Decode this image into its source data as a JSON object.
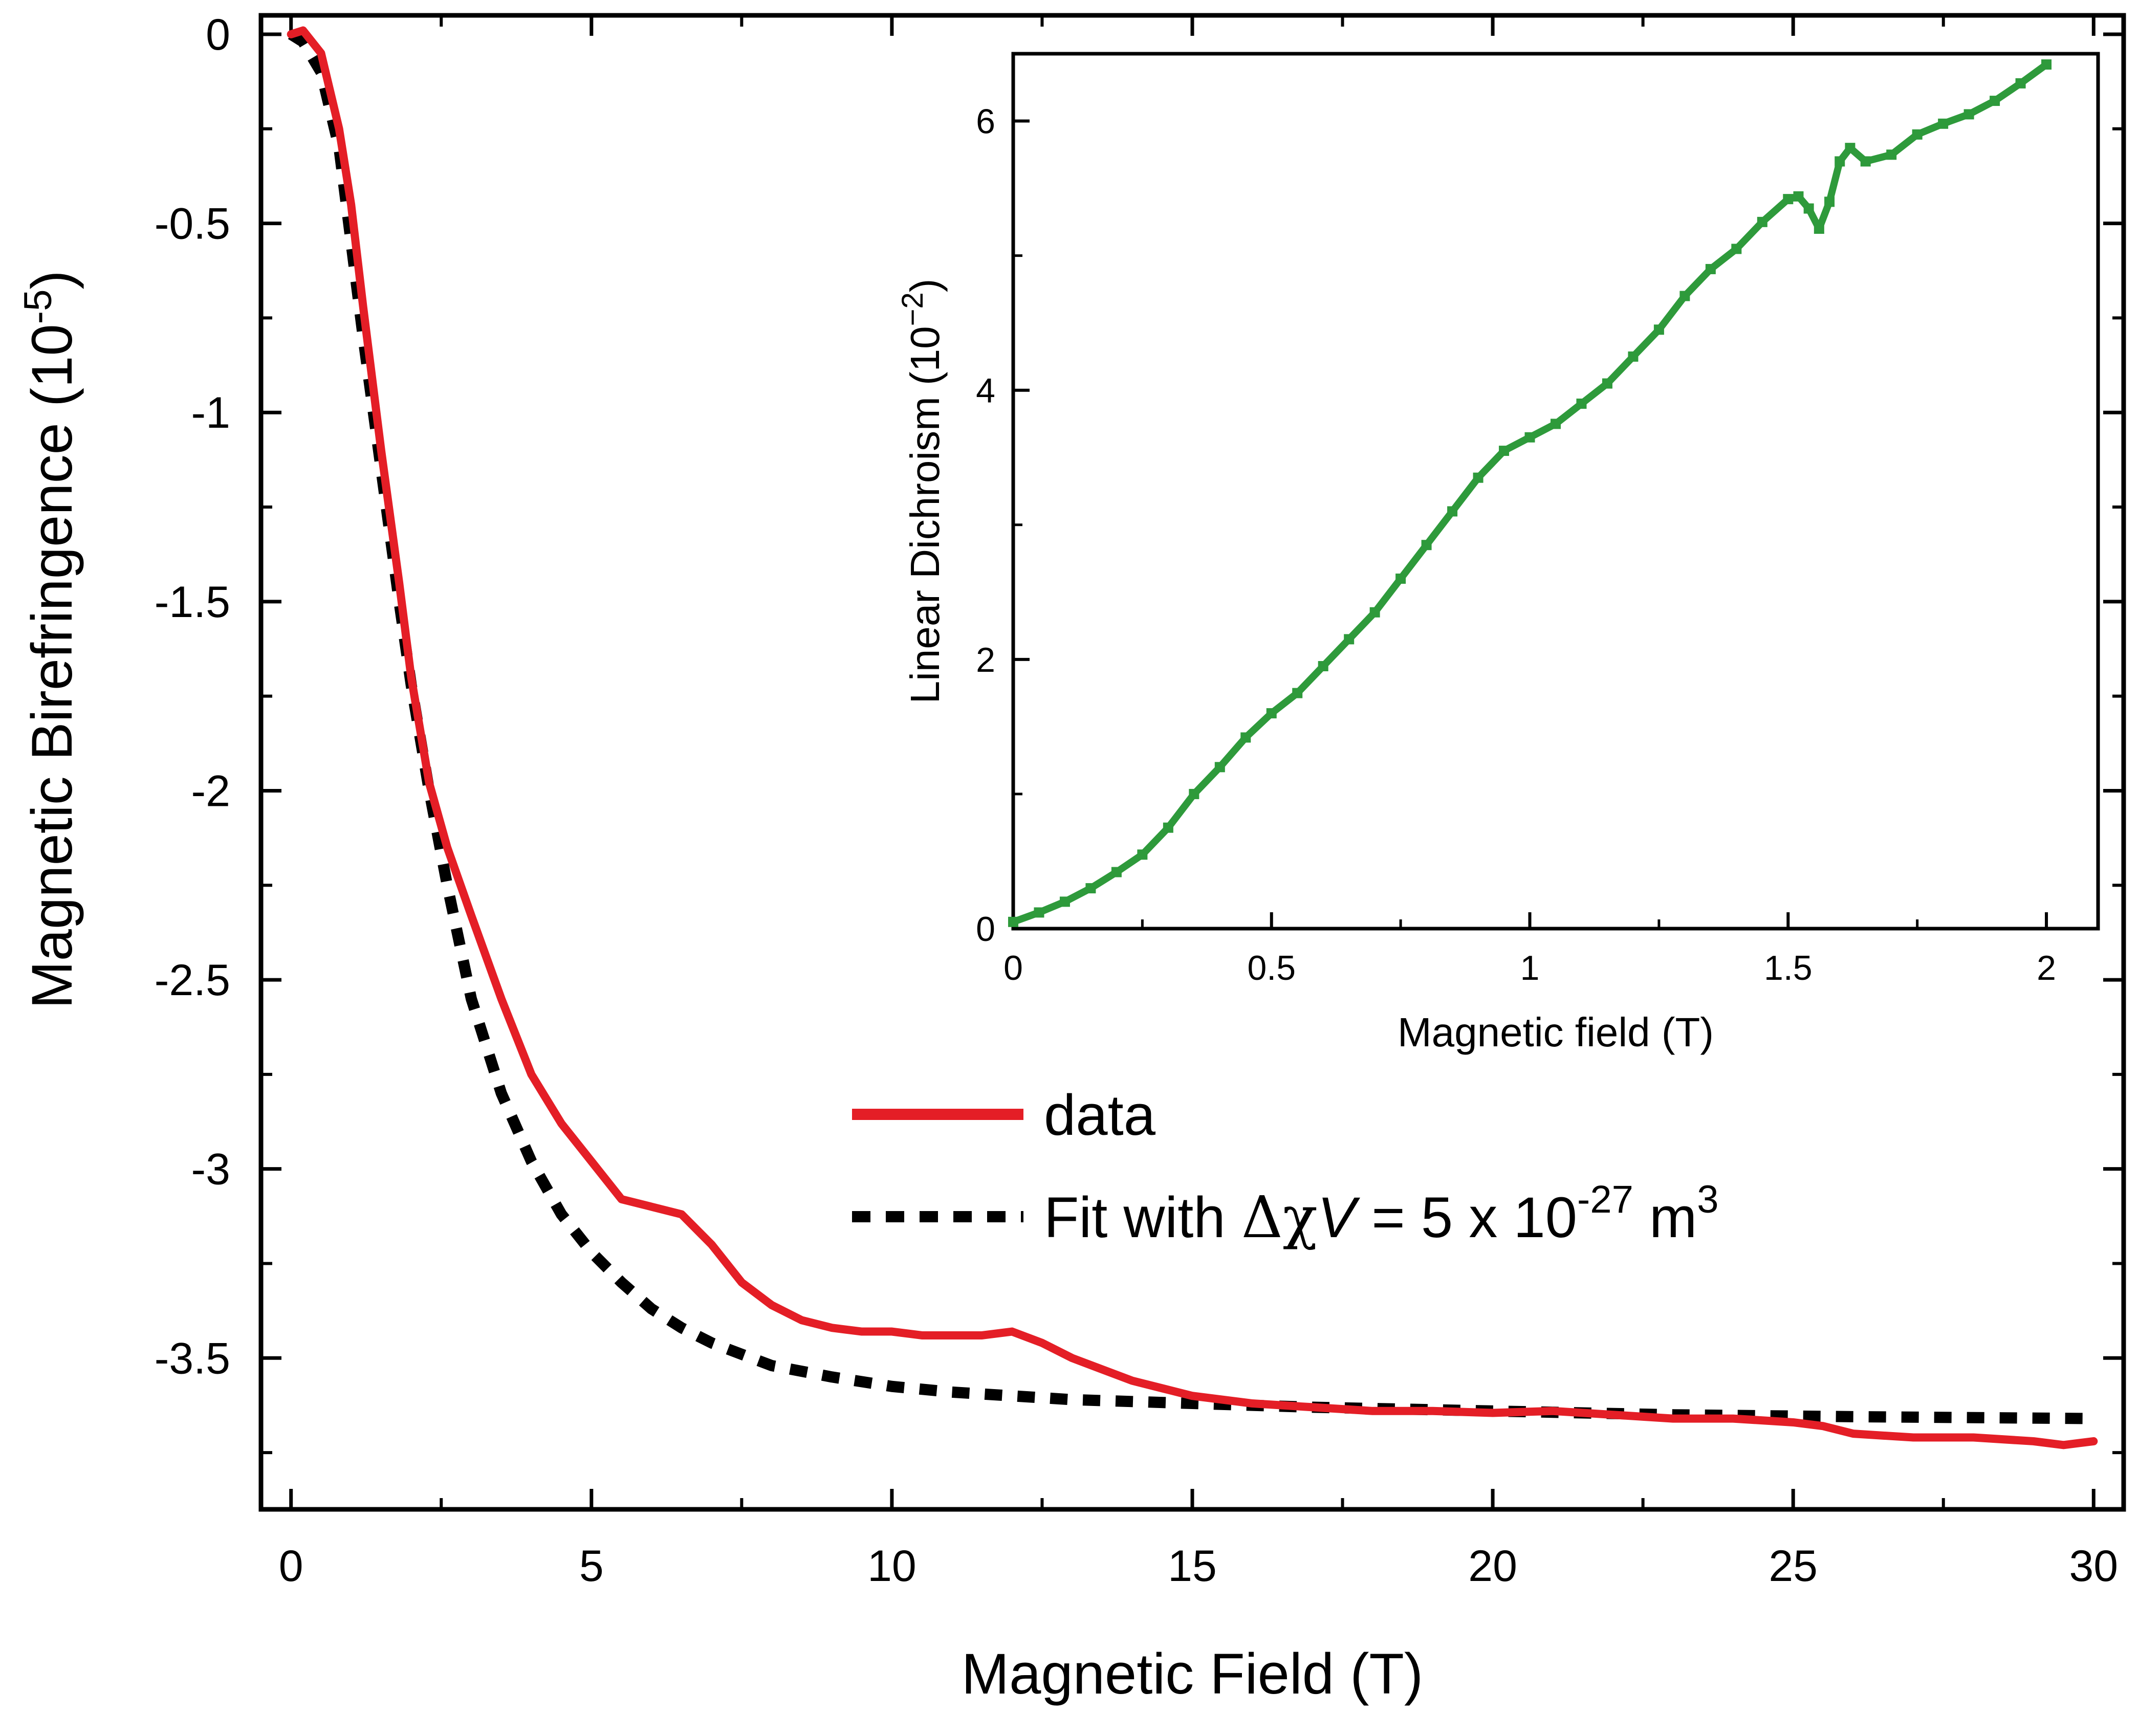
{
  "colors": {
    "data": "#e41e26",
    "fit": "#000000",
    "inset": "#2e9a3b",
    "axis": "#000000"
  },
  "main": {
    "xlabel": "Magnetic Field (T)",
    "ylabel": "Magnetic Birefringence (10",
    "ylabel_exp": "-5",
    "ylabel_close": ")",
    "xlim": [
      -0.5,
      30.5
    ],
    "ylim": [
      -3.9,
      0.05
    ],
    "xticks": [
      0,
      5,
      10,
      15,
      20,
      25,
      30
    ],
    "xtick_labels": [
      "0",
      "5",
      "10",
      "15",
      "20",
      "25",
      "30"
    ],
    "yticks": [
      0,
      -0.5,
      -1,
      -1.5,
      -2,
      -2.5,
      -3,
      -3.5
    ],
    "ytick_labels": [
      "0",
      "-0.5",
      "-1",
      "-1.5",
      "-2",
      "-2.5",
      "-3",
      "-3.5"
    ]
  },
  "legend": {
    "data_label": "data",
    "fit_prefix": "Fit with ",
    "fit_delta_chi": "Δχ",
    "fit_V": "V",
    "fit_middle": " = 5 x 10",
    "fit_exp": "-27",
    "fit_unit": " m",
    "fit_unit_exp": "3",
    "placement": "center-right"
  },
  "inset": {
    "xlabel": "Magnetic field (T)",
    "ylabel": "Linear Dichroism (10",
    "ylabel_exp": "−2",
    "ylabel_close": ")",
    "xlim": [
      0,
      2.1
    ],
    "ylim": [
      0,
      6.5
    ],
    "xticks": [
      0,
      0.5,
      1,
      1.5,
      2
    ],
    "xtick_labels": [
      "0",
      "0.5",
      "1",
      "1.5",
      "2"
    ],
    "yticks": [
      0,
      2,
      4,
      6
    ],
    "ytick_labels": [
      "0",
      "2",
      "4",
      "6"
    ]
  },
  "chart_data": [
    {
      "type": "line",
      "xlabel": "Magnetic Field (T)",
      "ylabel": "Magnetic Birefringence (10-5)",
      "xlim": [
        -0.5,
        30.5
      ],
      "ylim": [
        -3.9,
        0.05
      ],
      "series": [
        {
          "name": "data",
          "style": "solid",
          "x": [
            0,
            0.2,
            0.5,
            0.8,
            1.0,
            1.2,
            1.5,
            1.8,
            2.0,
            2.3,
            2.6,
            3.0,
            3.5,
            4.0,
            4.5,
            5.0,
            5.5,
            6.0,
            6.5,
            7.0,
            7.5,
            8.0,
            8.5,
            9.0,
            9.5,
            10.0,
            10.5,
            11.0,
            11.5,
            12.0,
            12.5,
            13.0,
            13.5,
            14.0,
            14.5,
            15.0,
            16.0,
            17.0,
            18.0,
            19.0,
            20.0,
            21.0,
            22.0,
            23.0,
            24.0,
            25.0,
            25.5,
            26.0,
            27.0,
            28.0,
            29.0,
            29.5,
            30.0
          ],
          "y": [
            0,
            0.01,
            -0.05,
            -0.25,
            -0.45,
            -0.72,
            -1.1,
            -1.45,
            -1.7,
            -1.98,
            -2.15,
            -2.33,
            -2.55,
            -2.75,
            -2.88,
            -2.98,
            -3.08,
            -3.1,
            -3.12,
            -3.2,
            -3.3,
            -3.36,
            -3.4,
            -3.42,
            -3.43,
            -3.43,
            -3.44,
            -3.44,
            -3.44,
            -3.43,
            -3.46,
            -3.5,
            -3.53,
            -3.56,
            -3.58,
            -3.6,
            -3.62,
            -3.63,
            -3.64,
            -3.64,
            -3.645,
            -3.64,
            -3.65,
            -3.66,
            -3.66,
            -3.67,
            -3.68,
            -3.7,
            -3.71,
            -3.71,
            -3.72,
            -3.73,
            -3.72
          ]
        },
        {
          "name": "Fit with ΔχV = 5 x 10-27 m3",
          "style": "dashed",
          "x": [
            0,
            0.2,
            0.5,
            0.8,
            1.0,
            1.2,
            1.5,
            1.8,
            2.0,
            2.3,
            2.6,
            3.0,
            3.5,
            4.0,
            4.5,
            5.0,
            5.5,
            6.0,
            6.5,
            7.0,
            7.5,
            8.0,
            9.0,
            10.0,
            11.0,
            12.0,
            13.0,
            14.0,
            15.0,
            17.0,
            20.0,
            23.0,
            26.0,
            30.0
          ],
          "y": [
            0,
            -0.02,
            -0.1,
            -0.3,
            -0.55,
            -0.8,
            -1.15,
            -1.5,
            -1.72,
            -2.0,
            -2.25,
            -2.55,
            -2.8,
            -2.98,
            -3.12,
            -3.22,
            -3.3,
            -3.37,
            -3.42,
            -3.46,
            -3.49,
            -3.52,
            -3.55,
            -3.575,
            -3.59,
            -3.6,
            -3.61,
            -3.615,
            -3.62,
            -3.63,
            -3.64,
            -3.65,
            -3.655,
            -3.66
          ]
        }
      ]
    },
    {
      "type": "scatter",
      "xlabel": "Magnetic field (T)",
      "ylabel": "Linear Dichroism (10−2)",
      "xlim": [
        0,
        2.1
      ],
      "ylim": [
        0,
        6.5
      ],
      "series": [
        {
          "x": [
            0,
            0.05,
            0.1,
            0.15,
            0.2,
            0.25,
            0.3,
            0.35,
            0.4,
            0.45,
            0.5,
            0.55,
            0.6,
            0.65,
            0.7,
            0.75,
            0.8,
            0.85,
            0.9,
            0.95,
            1.0,
            1.05,
            1.1,
            1.15,
            1.2,
            1.25,
            1.3,
            1.35,
            1.4,
            1.45,
            1.5,
            1.52,
            1.54,
            1.56,
            1.58,
            1.6,
            1.62,
            1.65,
            1.7,
            1.75,
            1.8,
            1.85,
            1.9,
            1.95,
            2.0
          ],
          "y": [
            0.05,
            0.12,
            0.2,
            0.3,
            0.42,
            0.55,
            0.75,
            1.0,
            1.2,
            1.42,
            1.6,
            1.75,
            1.95,
            2.15,
            2.35,
            2.6,
            2.85,
            3.1,
            3.35,
            3.55,
            3.65,
            3.75,
            3.9,
            4.05,
            4.25,
            4.45,
            4.7,
            4.9,
            5.05,
            5.25,
            5.42,
            5.44,
            5.35,
            5.2,
            5.4,
            5.7,
            5.8,
            5.7,
            5.75,
            5.9,
            5.98,
            6.05,
            6.15,
            6.28,
            6.42
          ]
        }
      ]
    }
  ]
}
